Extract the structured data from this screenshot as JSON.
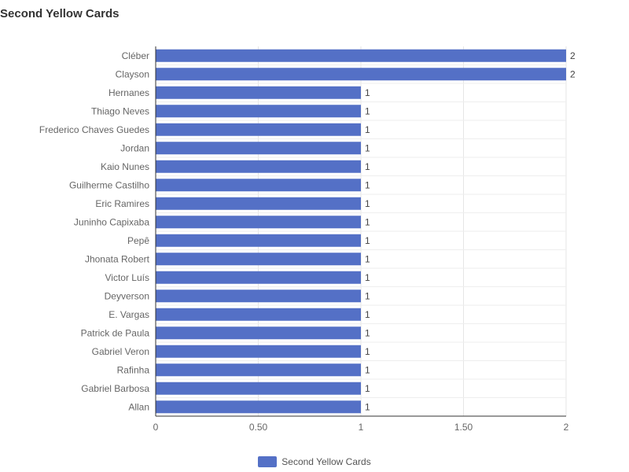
{
  "chart_data": {
    "type": "bar",
    "orientation": "horizontal",
    "title": "Second Yellow Cards",
    "categories": [
      "Cléber",
      "Clayson",
      "Hernanes",
      "Thiago Neves",
      "Frederico Chaves Guedes",
      "Jordan",
      "Kaio Nunes",
      "Guilherme Castilho",
      "Eric Ramires",
      "Juninho Capixaba",
      "Pepê",
      "Jhonata Robert",
      "Victor Luís",
      "Deyverson",
      "E. Vargas",
      "Patrick de Paula",
      "Gabriel Veron",
      "Rafinha",
      "Gabriel Barbosa",
      "Allan"
    ],
    "series": [
      {
        "name": "Second Yellow Cards",
        "values": [
          2,
          2,
          1,
          1,
          1,
          1,
          1,
          1,
          1,
          1,
          1,
          1,
          1,
          1,
          1,
          1,
          1,
          1,
          1,
          1
        ]
      }
    ],
    "xlim": [
      0,
      2
    ],
    "xticks": [
      "0",
      "0.50",
      "1",
      "1.50",
      "2"
    ],
    "grid": true,
    "legend_position": "bottom",
    "bar_color": "#5470c6"
  }
}
